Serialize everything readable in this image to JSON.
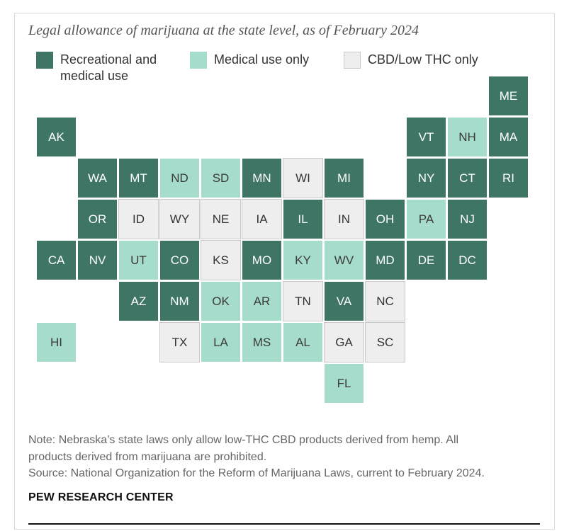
{
  "title": "Legal allowance of marijuana at the state level, as of February 2024",
  "colors": {
    "recreational": "#3f7565",
    "medical": "#a6dccb",
    "cbd": "#eeeeee"
  },
  "legend": [
    {
      "key": "rec",
      "lines": [
        "Recreational and",
        "medical use"
      ]
    },
    {
      "key": "med",
      "lines": [
        "Medical use only"
      ]
    },
    {
      "key": "cbd",
      "lines": [
        "CBD/Low THC only"
      ]
    }
  ],
  "states": [
    {
      "abbr": "ME",
      "row": 0,
      "col": 11,
      "status": "rec"
    },
    {
      "abbr": "AK",
      "row": 1,
      "col": 0,
      "status": "rec"
    },
    {
      "abbr": "VT",
      "row": 1,
      "col": 9,
      "status": "rec"
    },
    {
      "abbr": "NH",
      "row": 1,
      "col": 10,
      "status": "med"
    },
    {
      "abbr": "MA",
      "row": 1,
      "col": 11,
      "status": "rec"
    },
    {
      "abbr": "WA",
      "row": 2,
      "col": 1,
      "status": "rec"
    },
    {
      "abbr": "MT",
      "row": 2,
      "col": 2,
      "status": "rec"
    },
    {
      "abbr": "ND",
      "row": 2,
      "col": 3,
      "status": "med"
    },
    {
      "abbr": "SD",
      "row": 2,
      "col": 4,
      "status": "med"
    },
    {
      "abbr": "MN",
      "row": 2,
      "col": 5,
      "status": "rec"
    },
    {
      "abbr": "WI",
      "row": 2,
      "col": 6,
      "status": "cbd"
    },
    {
      "abbr": "MI",
      "row": 2,
      "col": 7,
      "status": "rec"
    },
    {
      "abbr": "NY",
      "row": 2,
      "col": 9,
      "status": "rec"
    },
    {
      "abbr": "CT",
      "row": 2,
      "col": 10,
      "status": "rec"
    },
    {
      "abbr": "RI",
      "row": 2,
      "col": 11,
      "status": "rec"
    },
    {
      "abbr": "OR",
      "row": 3,
      "col": 1,
      "status": "rec"
    },
    {
      "abbr": "ID",
      "row": 3,
      "col": 2,
      "status": "cbd"
    },
    {
      "abbr": "WY",
      "row": 3,
      "col": 3,
      "status": "cbd"
    },
    {
      "abbr": "NE",
      "row": 3,
      "col": 4,
      "status": "cbd"
    },
    {
      "abbr": "IA",
      "row": 3,
      "col": 5,
      "status": "cbd"
    },
    {
      "abbr": "IL",
      "row": 3,
      "col": 6,
      "status": "rec"
    },
    {
      "abbr": "IN",
      "row": 3,
      "col": 7,
      "status": "cbd"
    },
    {
      "abbr": "OH",
      "row": 3,
      "col": 8,
      "status": "rec"
    },
    {
      "abbr": "PA",
      "row": 3,
      "col": 9,
      "status": "med"
    },
    {
      "abbr": "NJ",
      "row": 3,
      "col": 10,
      "status": "rec"
    },
    {
      "abbr": "CA",
      "row": 4,
      "col": 0,
      "status": "rec"
    },
    {
      "abbr": "NV",
      "row": 4,
      "col": 1,
      "status": "rec"
    },
    {
      "abbr": "UT",
      "row": 4,
      "col": 2,
      "status": "med"
    },
    {
      "abbr": "CO",
      "row": 4,
      "col": 3,
      "status": "rec"
    },
    {
      "abbr": "KS",
      "row": 4,
      "col": 4,
      "status": "cbd"
    },
    {
      "abbr": "MO",
      "row": 4,
      "col": 5,
      "status": "rec"
    },
    {
      "abbr": "KY",
      "row": 4,
      "col": 6,
      "status": "med"
    },
    {
      "abbr": "WV",
      "row": 4,
      "col": 7,
      "status": "med"
    },
    {
      "abbr": "MD",
      "row": 4,
      "col": 8,
      "status": "rec"
    },
    {
      "abbr": "DE",
      "row": 4,
      "col": 9,
      "status": "rec"
    },
    {
      "abbr": "DC",
      "row": 4,
      "col": 10,
      "status": "rec"
    },
    {
      "abbr": "AZ",
      "row": 5,
      "col": 2,
      "status": "rec"
    },
    {
      "abbr": "NM",
      "row": 5,
      "col": 3,
      "status": "rec"
    },
    {
      "abbr": "OK",
      "row": 5,
      "col": 4,
      "status": "med"
    },
    {
      "abbr": "AR",
      "row": 5,
      "col": 5,
      "status": "med"
    },
    {
      "abbr": "TN",
      "row": 5,
      "col": 6,
      "status": "cbd"
    },
    {
      "abbr": "VA",
      "row": 5,
      "col": 7,
      "status": "rec"
    },
    {
      "abbr": "NC",
      "row": 5,
      "col": 8,
      "status": "cbd"
    },
    {
      "abbr": "HI",
      "row": 6,
      "col": 0,
      "status": "med"
    },
    {
      "abbr": "TX",
      "row": 6,
      "col": 3,
      "status": "cbd"
    },
    {
      "abbr": "LA",
      "row": 6,
      "col": 4,
      "status": "med"
    },
    {
      "abbr": "MS",
      "row": 6,
      "col": 5,
      "status": "med"
    },
    {
      "abbr": "AL",
      "row": 6,
      "col": 6,
      "status": "med"
    },
    {
      "abbr": "GA",
      "row": 6,
      "col": 7,
      "status": "cbd"
    },
    {
      "abbr": "SC",
      "row": 6,
      "col": 8,
      "status": "cbd"
    },
    {
      "abbr": "FL",
      "row": 7,
      "col": 7,
      "status": "med"
    }
  ],
  "notes": {
    "note_line1": "Note: Nebraska’s state laws only allow low-THC CBD products derived from hemp. All",
    "note_line2": "products derived from marijuana are prohibited.",
    "source": "Source: National Organization for the Reform of Marijuana Laws, current to February 2024."
  },
  "organization": "PEW RESEARCH CENTER"
}
